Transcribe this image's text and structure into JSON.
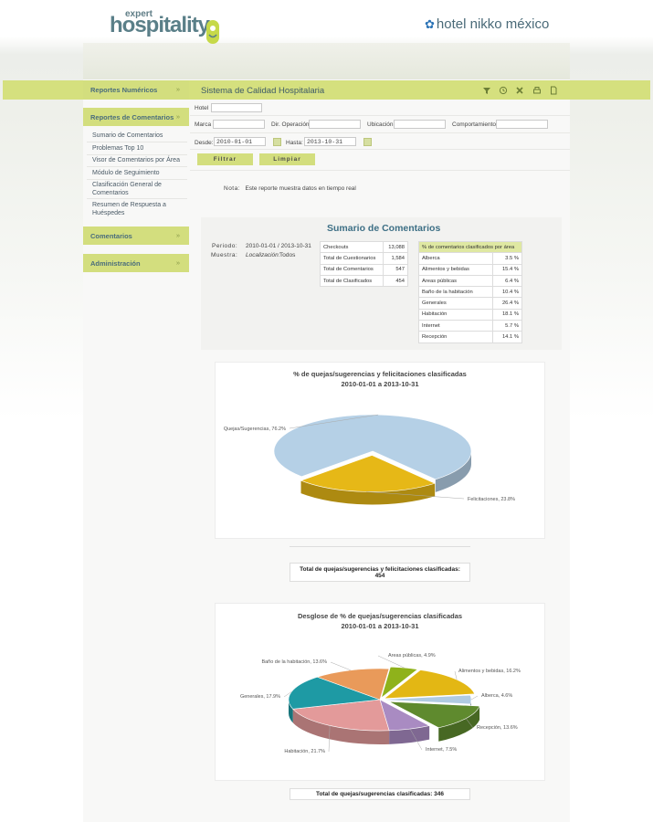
{
  "header": {
    "logo_small": "expert",
    "logo_big": "hospitality",
    "partner_logo": "hotel nikko méxico"
  },
  "toolbar": {
    "system_title": "Sistema de Calidad Hospitalaria",
    "icons": [
      "filter-icon",
      "clock-icon",
      "excel-icon",
      "print-icon",
      "pdf-icon"
    ]
  },
  "sidebar": {
    "reportes_numericos": "Reportes Numéricos",
    "reportes_comentarios": "Reportes de Comentarios",
    "sub_items": [
      "Sumario de Comentarios",
      "Problemas Top 10",
      "Visor de Comentarios por Área",
      "Módulo de Seguimiento",
      "Clasificación General de Comentarios",
      "Resumen de Respuesta a Huéspedes"
    ],
    "comentarios": "Comentarios",
    "administracion": "Administración",
    "chevron": "»"
  },
  "filters": {
    "hotel_label": "Hotel",
    "marca_label": "Marca",
    "dir_label": "Dir. Operación",
    "ubicacion_label": "Ubicación",
    "comportamiento_label": "Comportamiento",
    "desde_label": "Desde:",
    "desde_value": "2010-01-01",
    "hasta_label": "Hasta:",
    "hasta_value": "2013-10-31",
    "filtrar": "Filtrar",
    "limpiar": "Limpiar"
  },
  "nota": {
    "label": "Nota:",
    "text": "Este reporte muestra datos en tiempo real"
  },
  "summary": {
    "title": "Sumario de Comentarios",
    "periodo_label": "Periodo:",
    "periodo_value": "2010-01-01 / 2013-10-31",
    "muestra_label": "Muestra:",
    "localizacion_label": "Localización:",
    "localizacion_value": "Todos",
    "stats": [
      {
        "label": "Checkouts",
        "value": "13,088"
      },
      {
        "label": "Total de Cuestionarios",
        "value": "1,584"
      },
      {
        "label": "Total de Comentarios",
        "value": "547"
      },
      {
        "label": "Total de Clasificados",
        "value": "454"
      }
    ],
    "area_header": "% de comentarios clasificados por área",
    "areas": [
      {
        "label": "Alberca",
        "value": "3.5 %"
      },
      {
        "label": "Alimentos y bebidas",
        "value": "15.4 %"
      },
      {
        "label": "Areas públicas",
        "value": "6.4 %"
      },
      {
        "label": "Baño de la habitación",
        "value": "10.4 %"
      },
      {
        "label": "Generales",
        "value": "26.4 %"
      },
      {
        "label": "Habitación",
        "value": "18.1 %"
      },
      {
        "label": "Internet",
        "value": "5.7 %"
      },
      {
        "label": "Recepción",
        "value": "14.1 %"
      }
    ]
  },
  "chart_data": [
    {
      "type": "pie",
      "title": "% de quejas/sugerencias y felicitaciones clasificadas",
      "subtitle": "2010-01-01 a 2013-10-31",
      "categories": [
        "Quejas/Sugerencias",
        "Felicitaciones"
      ],
      "values": [
        76.2,
        23.8
      ],
      "data_labels": [
        "Quejas/Sugerencias, 76.2%",
        "Felicitaciones, 23.8%"
      ],
      "colors": [
        "#b5d0e6",
        "#e6b817"
      ]
    },
    {
      "type": "pie",
      "title": "Desglose de % de quejas/sugerencias clasificadas",
      "subtitle": "2010-01-01 a 2013-10-31",
      "categories": [
        "Areas públicas",
        "Alimentos y bebidas",
        "Alberca",
        "Recepción",
        "Internet",
        "Habitación",
        "Generales",
        "Baño de la habitación"
      ],
      "values": [
        4.9,
        16.2,
        4.6,
        13.6,
        7.5,
        21.7,
        17.9,
        13.6
      ],
      "data_labels": [
        "Areas públicas, 4.9%",
        "Alimentos y bebidas, 16.2%",
        "Alberca, 4.6%",
        "Recepción, 13.6%",
        "Internet, 7.5%",
        "Habitación, 21.7%",
        "Generales, 17.9%",
        "Baño de la habitación, 13.6%"
      ],
      "colors": [
        "#8fb21b",
        "#e3b714",
        "#b0cbe2",
        "#5f8a2e",
        "#a98bc2",
        "#e39a9a",
        "#1e9aa4",
        "#e99a5a"
      ]
    }
  ],
  "totals": {
    "total1_label": "Total de quejas/sugerencias y felicitaciones clasificadas:",
    "total1_value": "454",
    "total2_text": "Total de quejas/sugerencias clasificadas: 346"
  }
}
